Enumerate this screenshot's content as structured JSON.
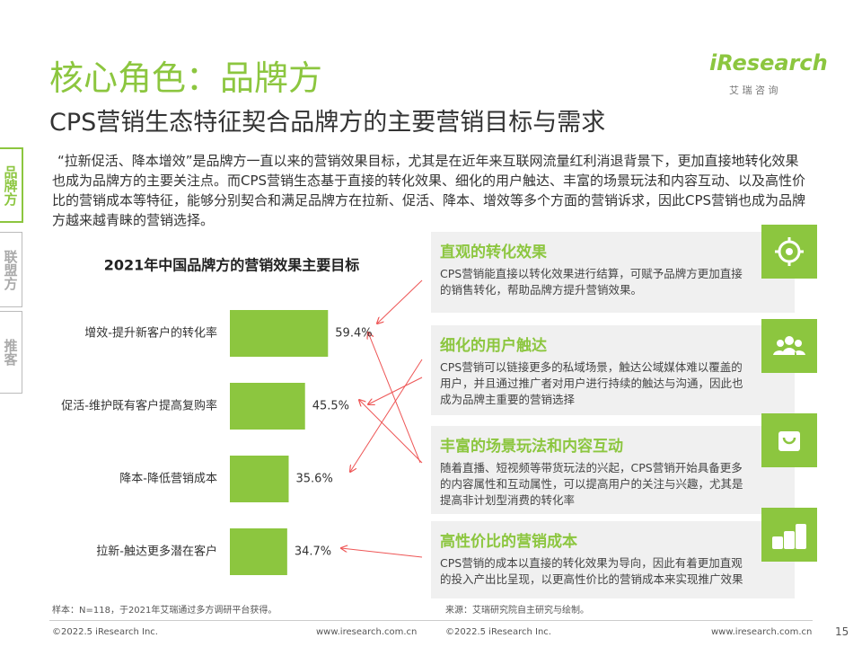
{
  "header": {
    "title": "核心角色：品牌方",
    "subtitle": "CPS营销生态特征契合品牌方的主要营销目标与需求"
  },
  "logo": {
    "name": "iResearch",
    "cn": "艾 瑞 咨 询"
  },
  "nav": [
    "品牌方",
    "联盟方",
    "推客"
  ],
  "intro": "“拉新促活、降本增效”是品牌方一直以来的营销效果目标，尤其是在近年来互联网流量红利消退背景下，更加直接地转化效果也成为品牌方的主要关注点。而CPS营销生态基于直接的转化效果、细化的用户触达、丰富的场景玩法和内容互动、以及高性价比的营销成本等特征，能够分别契合和满足品牌方在拉新、促活、降本、增效等多个方面的营销诉求，因此CPS营销也成为品牌方越来越青睐的营销选择。",
  "chart_data": {
    "type": "bar",
    "horizontal": true,
    "title": "2021年中国品牌方的营销效果主要目标",
    "categories": [
      "增效-提升新客户的转化率",
      "促活-维护既有客户提高复购率",
      "降本-降低营销成本",
      "拉新-触达更多潜在客户"
    ],
    "values": [
      59.4,
      45.5,
      35.6,
      34.7
    ],
    "value_labels": [
      "59.4%",
      "45.5%",
      "35.6%",
      "34.7%"
    ],
    "color": "#8cc63f"
  },
  "cards": [
    {
      "title": "直观的转化效果",
      "text": "CPS营销能直接以转化效果进行结算，可赋予品牌方更加直接的销售转化，帮助品牌方提升营销效果。"
    },
    {
      "title": "细化的用户触达",
      "text": "CPS营销可以链接更多的私域场景，触达公域媒体难以覆盖的用户，并且通过推广者对用户进行持续的触达与沟通，因此也成为品牌主重要的营销选择"
    },
    {
      "title": "丰富的场景玩法和内容互动",
      "text": "随着直播、短视频等带货玩法的兴起，CPS营销开始具备更多的内容属性和互动属性，可以提高用户的关注与兴趣，尤其是提高非计划型消费的转化率"
    },
    {
      "title": "高性价比的营销成本",
      "text": "CPS营销的成本以直接的转化效果为导向，因此有着更加直观的投入产出比呈现，以更高性价比的营销成本来实现推广效果"
    }
  ],
  "footnotes": {
    "sample": "样本：N=118，于2021年艾瑞通过多方调研平台获得。",
    "source": "来源：艾瑞研究院自主研究与绘制。"
  },
  "footer": {
    "copyright": "©2022.5 iResearch Inc.",
    "url": "www.iresearch.com.cn",
    "page": "15"
  }
}
